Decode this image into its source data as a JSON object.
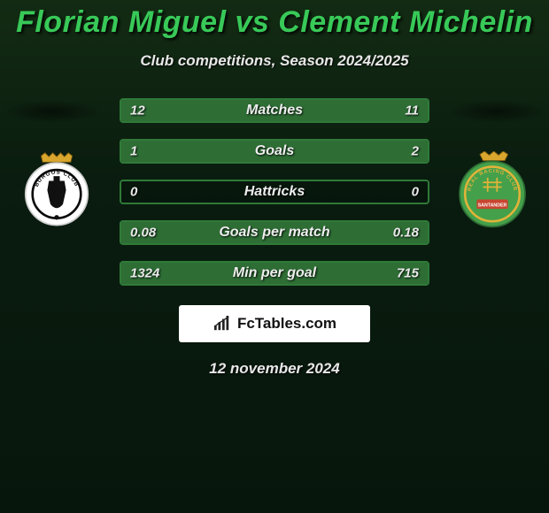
{
  "header": {
    "player1": "Florian Miguel",
    "vs": "vs",
    "player2": "Clement Michelin",
    "title_color": "#38c958",
    "subtitle": "Club competitions, Season 2024/2025"
  },
  "colors": {
    "bar_border": "#2f7a38",
    "fill_left": "#2e6e35",
    "fill_right": "#2e6e35",
    "background_top": "#1a3a1a",
    "background_bottom": "#0a1e10"
  },
  "bars": [
    {
      "label": "Matches",
      "left_value": "12",
      "right_value": "11",
      "left_pct": 52,
      "right_pct": 48
    },
    {
      "label": "Goals",
      "left_value": "1",
      "right_value": "2",
      "left_pct": 33,
      "right_pct": 67
    },
    {
      "label": "Hattricks",
      "left_value": "0",
      "right_value": "0",
      "left_pct": 0,
      "right_pct": 0
    },
    {
      "label": "Goals per match",
      "left_value": "0.08",
      "right_value": "0.18",
      "left_pct": 31,
      "right_pct": 69
    },
    {
      "label": "Min per goal",
      "left_value": "1324",
      "right_value": "715",
      "left_pct": 65,
      "right_pct": 35
    }
  ],
  "crest_left": {
    "bg": "#ffffff",
    "ring": "#0b0b0b",
    "crown": "#d9a62e"
  },
  "crest_right": {
    "bg": "#44a04a",
    "ring": "#e0b33a",
    "crown": "#d9a62e",
    "banner": "#c8452f"
  },
  "brand": {
    "text": "FcTables.com",
    "icon_color": "#222222"
  },
  "footer": {
    "date": "12 november 2024"
  }
}
